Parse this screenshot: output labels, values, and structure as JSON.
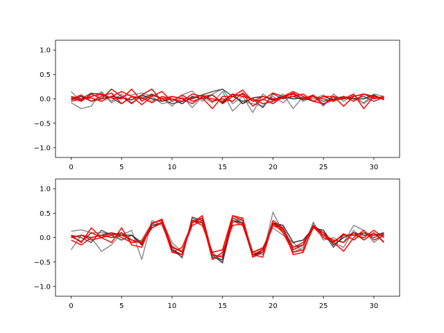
{
  "chart_data": [
    {
      "type": "line",
      "panel": "top",
      "xlim": [
        -1.55,
        32.55
      ],
      "ylim": [
        -1.2,
        1.2
      ],
      "xticks": [
        0,
        5,
        10,
        15,
        20,
        25,
        30
      ],
      "yticks": [
        -1.0,
        -0.5,
        0.0,
        0.5,
        1.0
      ],
      "xtick_labels": [
        "0",
        "5",
        "10",
        "15",
        "20",
        "25",
        "30"
      ],
      "ytick_labels": [
        "−1.0",
        "−0.5",
        "0.0",
        "0.5",
        "1.0"
      ],
      "grid": false,
      "x": [
        0,
        1,
        2,
        3,
        4,
        5,
        6,
        7,
        8,
        9,
        10,
        11,
        12,
        13,
        14,
        15,
        16,
        17,
        18,
        19,
        20,
        21,
        22,
        23,
        24,
        25,
        26,
        27,
        28,
        29,
        30,
        31
      ],
      "series": [
        {
          "color": "#808080",
          "values": [
            0.15,
            -0.05,
            0.1,
            0.12,
            -0.08,
            0.05,
            0.08,
            0.12,
            0.05,
            -0.1,
            -0.05,
            0.08,
            0.16,
            -0.05,
            0.1,
            0.2,
            -0.1,
            0.05,
            -0.28,
            0.1,
            -0.05,
            0.1,
            -0.2,
            0.05,
            0.0,
            0.08,
            -0.05,
            0.05,
            0.0,
            -0.08,
            0.1,
            0.05
          ]
        },
        {
          "color": "#808080",
          "values": [
            -0.08,
            -0.2,
            -0.15,
            0.15,
            -0.05,
            0.1,
            -0.08,
            0.05,
            -0.05,
            0.02,
            -0.15,
            0.05,
            -0.18,
            0.05,
            -0.08,
            0.15,
            -0.25,
            -0.05,
            -0.1,
            -0.15,
            0.05,
            -0.08,
            0.1,
            -0.05,
            0.05,
            -0.15,
            0.1,
            -0.05,
            0.08,
            -0.1,
            0.05,
            0.0
          ]
        },
        {
          "color": "#505050",
          "values": [
            0.05,
            0.0,
            0.12,
            0.08,
            0.02,
            -0.1,
            0.05,
            0.0,
            0.1,
            0.0,
            -0.1,
            -0.05,
            0.0,
            0.08,
            0.15,
            0.2,
            0.05,
            -0.05,
            0.0,
            -0.18,
            0.1,
            0.0,
            0.05,
            -0.02,
            0.05,
            -0.05,
            0.0,
            0.05,
            0.0,
            0.05,
            -0.05,
            0.03
          ]
        },
        {
          "color": "#303030",
          "values": [
            -0.02,
            0.05,
            -0.05,
            0.0,
            0.05,
            0.02,
            -0.02,
            0.08,
            0.0,
            -0.05,
            0.0,
            -0.1,
            0.05,
            0.0,
            0.08,
            -0.08,
            0.1,
            -0.1,
            0.02,
            0.05,
            -0.02,
            0.05,
            0.0,
            0.02,
            -0.05,
            0.05,
            -0.02,
            0.02,
            0.0,
            0.0,
            0.08,
            -0.02
          ]
        },
        {
          "color": "#FF0000",
          "values": [
            0.05,
            -0.02,
            0.05,
            0.1,
            0.02,
            0.0,
            0.2,
            -0.05,
            0.08,
            0.0,
            0.05,
            0.0,
            -0.1,
            0.05,
            0.08,
            -0.1,
            0.05,
            0.18,
            -0.05,
            -0.02,
            0.12,
            0.05,
            0.1,
            0.0,
            0.05,
            0.0,
            -0.05,
            0.05,
            -0.05,
            0.1,
            0.02,
            0.0
          ]
        },
        {
          "color": "#FF0000",
          "values": [
            0.0,
            0.08,
            -0.05,
            0.05,
            0.12,
            -0.1,
            0.05,
            -0.12,
            0.05,
            0.15,
            -0.05,
            0.08,
            -0.05,
            0.02,
            -0.2,
            0.05,
            0.05,
            0.1,
            -0.15,
            0.0,
            -0.1,
            0.05,
            0.15,
            0.05,
            -0.05,
            0.05,
            0.05,
            -0.15,
            0.05,
            0.1,
            0.0,
            0.05
          ]
        },
        {
          "color": "#FF0000",
          "values": [
            -0.05,
            0.0,
            0.02,
            -0.05,
            0.05,
            0.15,
            0.05,
            0.02,
            -0.08,
            0.05,
            0.0,
            -0.05,
            0.1,
            0.05,
            0.0,
            -0.05,
            0.1,
            0.05,
            0.0,
            -0.1,
            -0.05,
            0.02,
            0.05,
            0.1,
            -0.05,
            -0.1,
            -0.02,
            0.0,
            0.1,
            -0.2,
            0.05,
            0.02
          ]
        },
        {
          "color": "#E00000",
          "values": [
            0.02,
            -0.05,
            0.1,
            0.0,
            0.2,
            0.05,
            -0.1,
            0.08,
            0.2,
            -0.05,
            0.05,
            0.0,
            0.02,
            0.08,
            -0.05,
            0.0,
            -0.05,
            0.12,
            -0.05,
            0.05,
            0.0,
            0.02,
            0.12,
            0.0,
            0.08,
            -0.12,
            0.05,
            0.0,
            0.05,
            0.1,
            0.05,
            0.02
          ]
        }
      ]
    },
    {
      "type": "line",
      "panel": "bottom",
      "xlim": [
        -1.55,
        32.55
      ],
      "ylim": [
        -1.2,
        1.2
      ],
      "xticks": [
        0,
        5,
        10,
        15,
        20,
        25,
        30
      ],
      "yticks": [
        -1.0,
        -0.5,
        0.0,
        0.5,
        1.0
      ],
      "xtick_labels": [
        "0",
        "5",
        "10",
        "15",
        "20",
        "25",
        "30"
      ],
      "ytick_labels": [
        "−1.0",
        "−0.5",
        "0.0",
        "0.5",
        "1.0"
      ],
      "grid": false,
      "x": [
        0,
        1,
        2,
        3,
        4,
        5,
        6,
        7,
        8,
        9,
        10,
        11,
        12,
        13,
        14,
        15,
        16,
        17,
        18,
        19,
        20,
        21,
        22,
        23,
        24,
        25,
        26,
        27,
        28,
        29,
        30,
        31
      ],
      "series": [
        {
          "color": "#808080",
          "values": [
            0.13,
            0.16,
            0.1,
            0.1,
            0.08,
            0.05,
            0.15,
            -0.45,
            0.35,
            0.25,
            -0.2,
            -0.42,
            0.4,
            0.3,
            -0.3,
            -0.5,
            0.3,
            0.4,
            -0.3,
            -0.35,
            0.52,
            0.1,
            -0.3,
            -0.2,
            0.32,
            -0.05,
            0.0,
            -0.1,
            0.25,
            0.15,
            -0.1,
            0.05
          ]
        },
        {
          "color": "#808080",
          "values": [
            -0.25,
            0.05,
            0.0,
            -0.28,
            -0.15,
            0.1,
            -0.1,
            -0.05,
            0.3,
            0.35,
            -0.1,
            -0.3,
            0.35,
            0.4,
            -0.45,
            -0.35,
            0.4,
            0.35,
            -0.3,
            -0.2,
            0.2,
            0.05,
            -0.1,
            -0.3,
            0.3,
            0.0,
            -0.1,
            -0.2,
            0.15,
            -0.05,
            0.1,
            -0.08
          ]
        },
        {
          "color": "#505050",
          "values": [
            0.05,
            0.0,
            -0.1,
            0.15,
            0.05,
            -0.05,
            0.05,
            -0.1,
            0.2,
            0.3,
            -0.25,
            -0.4,
            0.42,
            0.35,
            -0.35,
            -0.52,
            0.4,
            0.3,
            -0.4,
            -0.25,
            0.3,
            0.2,
            -0.2,
            -0.15,
            0.25,
            0.1,
            -0.2,
            0.05,
            0.05,
            0.1,
            0.0,
            0.08
          ]
        },
        {
          "color": "#303030",
          "values": [
            0.0,
            0.05,
            0.0,
            0.05,
            0.1,
            0.05,
            0.05,
            -0.15,
            0.25,
            0.3,
            -0.25,
            -0.35,
            0.35,
            0.3,
            -0.4,
            -0.45,
            0.35,
            0.3,
            -0.35,
            -0.3,
            0.3,
            0.25,
            -0.1,
            -0.05,
            0.2,
            0.15,
            -0.15,
            0.0,
            0.1,
            0.05,
            0.05,
            0.1
          ]
        },
        {
          "color": "#FF0000",
          "values": [
            0.05,
            -0.1,
            0.2,
            0.0,
            -0.1,
            0.2,
            -0.15,
            -0.2,
            0.3,
            0.35,
            -0.3,
            -0.2,
            0.3,
            0.45,
            -0.35,
            -0.4,
            0.45,
            0.4,
            -0.4,
            -0.3,
            0.35,
            0.2,
            -0.35,
            -0.3,
            0.25,
            0.05,
            -0.05,
            -0.1,
            0.1,
            -0.05,
            0.1,
            -0.1
          ]
        },
        {
          "color": "#FF0000",
          "values": [
            -0.05,
            -0.15,
            0.0,
            0.05,
            0.0,
            0.05,
            -0.05,
            -0.1,
            0.2,
            0.3,
            -0.3,
            -0.35,
            0.35,
            0.25,
            -0.3,
            -0.25,
            0.45,
            0.35,
            -0.35,
            -0.4,
            0.3,
            0.1,
            -0.3,
            -0.25,
            0.2,
            0.1,
            -0.1,
            -0.28,
            0.0,
            0.15,
            -0.05,
            0.05
          ]
        },
        {
          "color": "#FF0000",
          "values": [
            0.0,
            0.05,
            -0.05,
            0.0,
            0.1,
            0.0,
            -0.1,
            -0.08,
            0.28,
            0.38,
            -0.2,
            -0.28,
            0.25,
            0.35,
            -0.45,
            -0.3,
            0.25,
            0.28,
            -0.3,
            -0.22,
            0.25,
            0.15,
            -0.2,
            -0.1,
            0.22,
            0.0,
            -0.08,
            0.05,
            0.05,
            0.0,
            0.15,
            0.0
          ]
        },
        {
          "color": "#E00000",
          "values": [
            0.02,
            -0.08,
            0.1,
            0.0,
            0.05,
            0.1,
            -0.05,
            -0.12,
            0.2,
            0.32,
            -0.18,
            -0.3,
            0.3,
            0.4,
            -0.35,
            -0.4,
            0.35,
            0.25,
            -0.35,
            -0.25,
            0.28,
            0.18,
            -0.25,
            -0.15,
            0.25,
            0.05,
            -0.1,
            0.08,
            -0.05,
            0.1,
            0.05,
            0.05
          ]
        }
      ]
    }
  ]
}
